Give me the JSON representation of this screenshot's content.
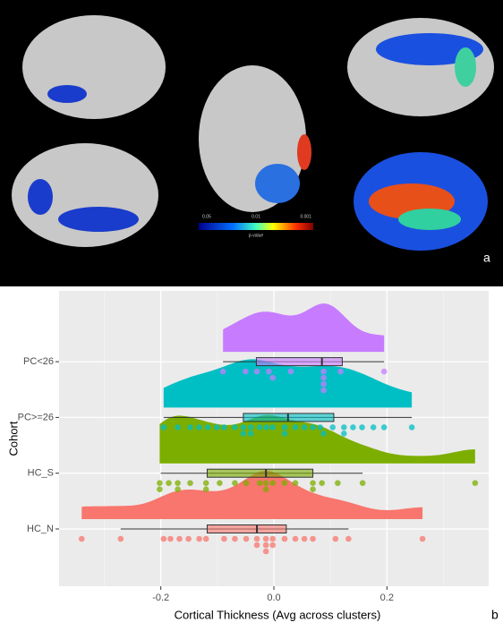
{
  "panel_a": {
    "colorbar_labels": [
      "0.05",
      "0.01",
      "0.001"
    ],
    "colorbar_title": "p-value",
    "panel_label": "a"
  },
  "chart_data": {
    "type": "raincloud",
    "xlabel": "Cortical Thickness (Avg across clusters)",
    "ylabel": "Cohort",
    "panel_label": "b",
    "categories": [
      "HC_N",
      "HC_S",
      "PC>=26",
      "PC<26"
    ],
    "xlim": [
      -0.38,
      0.38
    ],
    "xticks": [
      {
        "value": -0.2,
        "label": "-0.2"
      },
      {
        "value": 0,
        "label": "0.0"
      },
      {
        "value": 0.2,
        "label": "0.2"
      }
    ],
    "xminor": [
      -0.3,
      -0.1,
      0.1,
      0.3
    ],
    "grid": true,
    "series": [
      {
        "name": "HC_N",
        "color": "#f8766d",
        "box": {
          "min": -0.271,
          "q1": -0.118,
          "median": -0.03,
          "q3": 0.022,
          "max": 0.132
        },
        "points": [
          -0.34,
          -0.271,
          -0.195,
          -0.183,
          -0.167,
          -0.151,
          -0.132,
          -0.12,
          -0.088,
          -0.069,
          -0.049,
          -0.03,
          -0.014,
          -0.002,
          0.019,
          0.038,
          0.054,
          0.069,
          0.109,
          0.132,
          0.263,
          -0.03,
          -0.014,
          -0.002,
          -0.014
        ]
      },
      {
        "name": "HC_S",
        "color": "#7cae00",
        "box": {
          "min": -0.2,
          "q1": -0.118,
          "median": -0.014,
          "q3": 0.069,
          "max": 0.157
        },
        "points": [
          -0.202,
          -0.186,
          -0.17,
          -0.148,
          -0.12,
          -0.096,
          -0.069,
          -0.049,
          -0.025,
          -0.014,
          -0.002,
          0.019,
          0.038,
          0.069,
          0.085,
          0.113,
          0.157,
          0.356,
          -0.202,
          -0.17,
          -0.12,
          -0.014,
          0.069
        ]
      },
      {
        "name": "PC>=26",
        "color": "#00bfc4",
        "box": {
          "min": -0.195,
          "q1": -0.054,
          "median": 0.025,
          "q3": 0.106,
          "max": 0.244
        },
        "points": [
          -0.195,
          -0.17,
          -0.148,
          -0.132,
          -0.117,
          -0.101,
          -0.088,
          -0.069,
          -0.054,
          -0.041,
          -0.025,
          -0.013,
          -0.002,
          0.019,
          0.038,
          0.054,
          0.069,
          0.082,
          0.104,
          0.124,
          0.14,
          0.156,
          0.176,
          0.195,
          0.244,
          -0.054,
          -0.041,
          0.019,
          0.088,
          0.124
        ]
      },
      {
        "name": "PC<26",
        "color": "#c77cff",
        "box": {
          "min": -0.09,
          "q1": -0.031,
          "median": 0.085,
          "q3": 0.121,
          "max": 0.195
        },
        "points": [
          -0.09,
          -0.05,
          -0.03,
          -0.009,
          -0.002,
          0.03,
          0.088,
          0.088,
          0.088,
          0.088,
          0.118,
          0.195
        ]
      }
    ]
  }
}
